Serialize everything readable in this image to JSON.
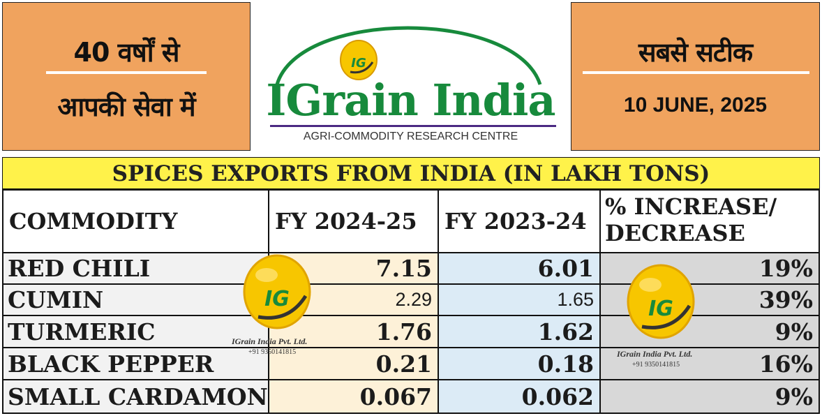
{
  "header": {
    "left_line1": "40 वर्षों से",
    "left_line2": "आपकी सेवा में",
    "right_line1": "सबसे सटीक",
    "date": "10 JUNE, 2025"
  },
  "logo": {
    "brand": "IGrain India",
    "subtitle": "AGRI-COMMODITY RESEARCH CENTRE",
    "badge": "IG"
  },
  "table": {
    "title": "SPICES EXPORTS FROM INDIA (IN LAKH TONS)",
    "columns": [
      "COMMODITY",
      "FY  2024-25",
      "FY 2023-24",
      "% INCREASE/ DECREASE"
    ],
    "rows": [
      {
        "commodity": "RED CHILI",
        "fy2425": "7.15",
        "fy2324": "6.01",
        "change": "19%"
      },
      {
        "commodity": "CUMIN",
        "fy2425": "2.29",
        "fy2324": "1.65",
        "change": "39%"
      },
      {
        "commodity": "TURMERIC",
        "fy2425": "1.76",
        "fy2324": "1.62",
        "change": "9%"
      },
      {
        "commodity": "BLACK PEPPER",
        "fy2425": "0.21",
        "fy2324": "0.18",
        "change": "16%"
      },
      {
        "commodity": "SMALL CARDAMON",
        "fy2425": "0.067",
        "fy2324": "0.062",
        "change": "9%"
      }
    ]
  },
  "watermark": {
    "badge": "IG",
    "name": "IGrain India Pvt. Ltd.",
    "phone": "+91 9350141815"
  },
  "colors": {
    "header_orange": "#f0a35e",
    "brand_green": "#178a3c",
    "title_yellow": "#fff24a",
    "badge_yellow": "#f7c600"
  }
}
